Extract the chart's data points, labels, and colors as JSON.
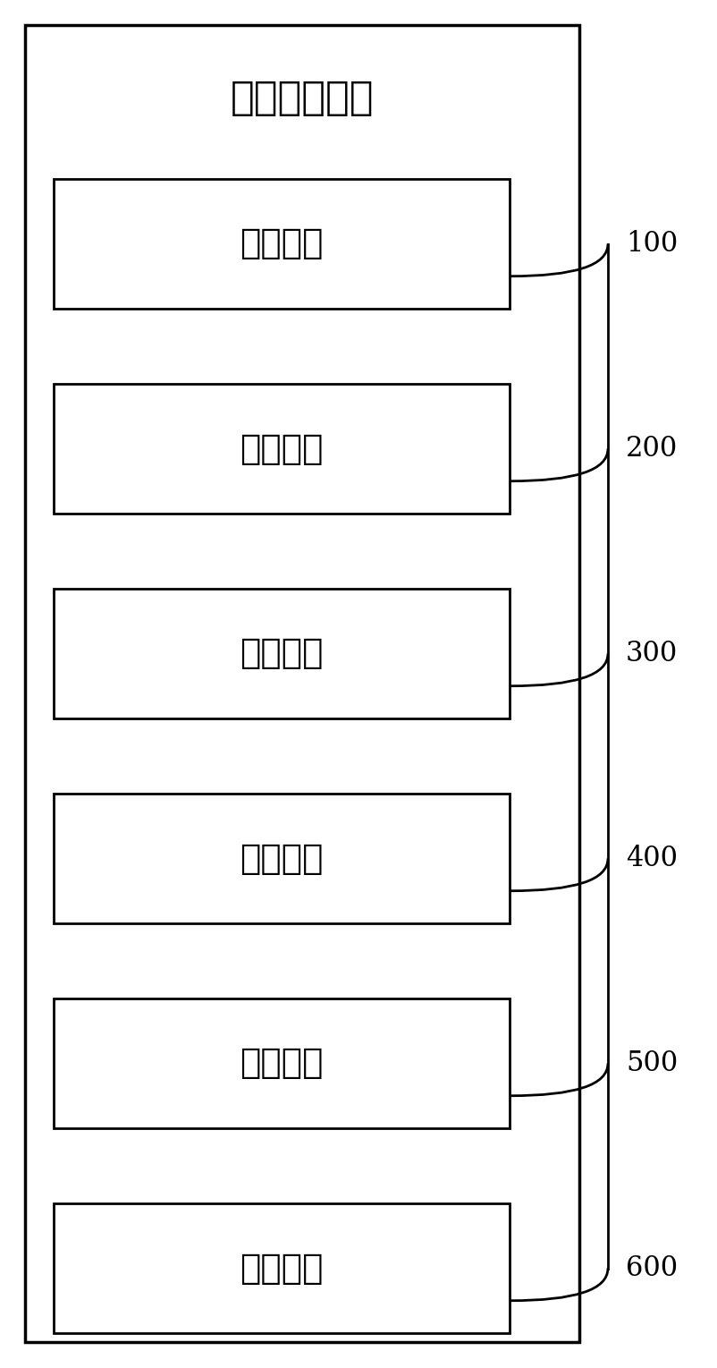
{
  "title": "电缆灭火装置",
  "modules": [
    {
      "label": "采集模块",
      "number": "100"
    },
    {
      "label": "比较模块",
      "number": "200"
    },
    {
      "label": "提示模块",
      "number": "300"
    },
    {
      "label": "判断模块",
      "number": "400"
    },
    {
      "label": "处理模块",
      "number": "500"
    },
    {
      "label": "控制模块",
      "number": "600"
    }
  ],
  "bg_color": "#ffffff",
  "box_color": "#ffffff",
  "line_color": "#000000",
  "text_color": "#000000",
  "outer_box_color": "#ffffff",
  "figsize": [
    8.03,
    15.29
  ],
  "dpi": 100,
  "title_fontsize": 32,
  "module_fontsize": 28,
  "number_fontsize": 22
}
